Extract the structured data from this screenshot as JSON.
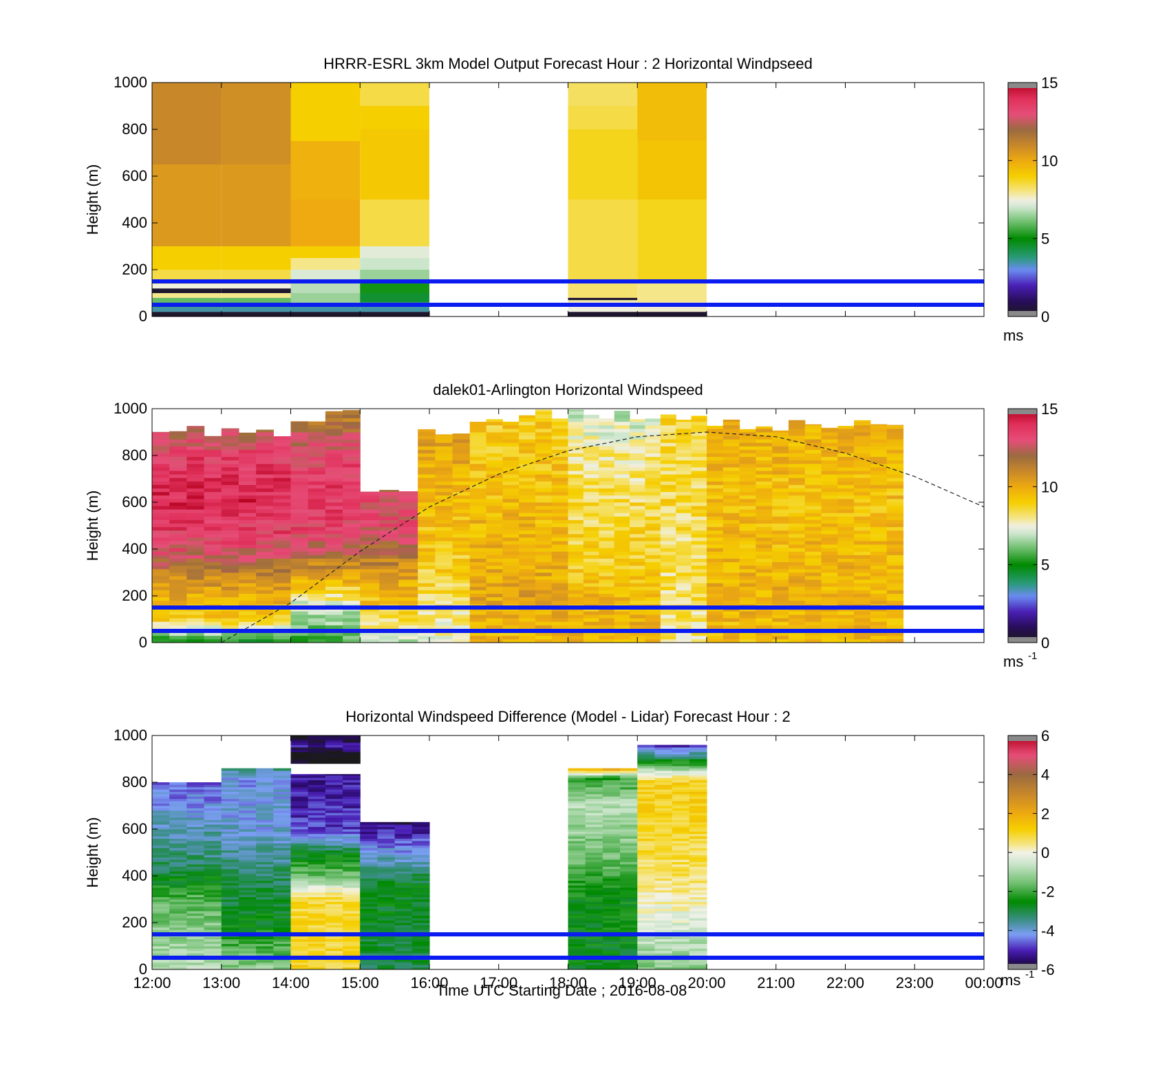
{
  "figure": {
    "x_axis_label": "Time UTC  Starting Date ; 2016-08-08",
    "x_ticks": [
      "12:00",
      "13:00",
      "14:00",
      "15:00",
      "16:00",
      "17:00",
      "18:00",
      "19:00",
      "20:00",
      "21:00",
      "22:00",
      "23:00",
      "00:00"
    ]
  },
  "chart_data": [
    {
      "type": "heatmap",
      "title": "HRRR-ESRL 3km Model Output   Forecast Hour : 2 Horizontal Windpseed",
      "ylabel": "Height (m)",
      "ylim": [
        0,
        1000
      ],
      "y_ticks": [
        "0",
        "200",
        "400",
        "600",
        "800",
        "1000"
      ],
      "colorbar": {
        "ticks": [
          "0",
          "5",
          "10",
          "15"
        ],
        "range": [
          0,
          15
        ],
        "unit": "ms",
        "unit_sup": ""
      },
      "reference_lines_m": [
        50,
        150
      ],
      "columns": [
        {
          "start": "12:00",
          "end": "13:00",
          "top_m": 1000,
          "layers": [
            [
              0,
              0.3
            ],
            [
              20,
              3.5
            ],
            [
              40,
              4.5
            ],
            [
              60,
              6
            ],
            [
              80,
              8
            ],
            [
              100,
              0.3
            ],
            [
              120,
              7.5
            ],
            [
              140,
              8.5
            ],
            [
              200,
              9
            ],
            [
              300,
              10.5
            ],
            [
              1000,
              11
            ]
          ]
        },
        {
          "start": "13:00",
          "end": "14:00",
          "top_m": 1000,
          "layers": [
            [
              0,
              0.3
            ],
            [
              20,
              3.5
            ],
            [
              40,
              4.5
            ],
            [
              60,
              6
            ],
            [
              80,
              8
            ],
            [
              100,
              0.3
            ],
            [
              120,
              7.5
            ],
            [
              140,
              8.5
            ],
            [
              200,
              9
            ],
            [
              300,
              10.5
            ],
            [
              1000,
              10.8
            ]
          ]
        },
        {
          "start": "14:00",
          "end": "15:00",
          "top_m": 1000,
          "layers": [
            [
              0,
              0.3
            ],
            [
              20,
              3.5
            ],
            [
              50,
              6.5
            ],
            [
              100,
              6.8
            ],
            [
              150,
              7.2
            ],
            [
              200,
              8
            ],
            [
              250,
              9
            ],
            [
              300,
              10
            ],
            [
              500,
              9.8
            ],
            [
              1000,
              9
            ]
          ]
        },
        {
          "start": "15:00",
          "end": "16:00",
          "top_m": 1000,
          "layers": [
            [
              0,
              0.3
            ],
            [
              20,
              3.5
            ],
            [
              60,
              4.5
            ],
            [
              100,
              5.2
            ],
            [
              150,
              6.5
            ],
            [
              200,
              7
            ],
            [
              250,
              7.3
            ],
            [
              300,
              8.5
            ],
            [
              500,
              9.2
            ],
            [
              800,
              9
            ],
            [
              1000,
              8.5
            ]
          ]
        },
        {
          "start": "18:00",
          "end": "19:00",
          "top_m": 1000,
          "layers": [
            [
              0,
              0.3
            ],
            [
              20,
              7.5
            ],
            [
              60,
              7.8
            ],
            [
              70,
              0.3
            ],
            [
              80,
              8.2
            ],
            [
              150,
              8.5
            ],
            [
              500,
              8.8
            ],
            [
              800,
              8.5
            ],
            [
              1000,
              8.3
            ]
          ]
        },
        {
          "start": "19:00",
          "end": "20:00",
          "top_m": 1000,
          "layers": [
            [
              0,
              0.3
            ],
            [
              20,
              7.6
            ],
            [
              60,
              8
            ],
            [
              150,
              8.8
            ],
            [
              500,
              9.3
            ],
            [
              1000,
              9.5
            ]
          ]
        }
      ]
    },
    {
      "type": "heatmap",
      "title": "dalek01-Arlington  Horizontal Windspeed",
      "ylabel": "Height (m)",
      "ylim": [
        0,
        1000
      ],
      "y_ticks": [
        "0",
        "200",
        "400",
        "600",
        "800",
        "1000"
      ],
      "colorbar": {
        "ticks": [
          "0",
          "5",
          "10",
          "15"
        ],
        "range": [
          0,
          15
        ],
        "unit": "ms",
        "unit_sup": "-1"
      },
      "reference_lines_m": [
        50,
        150
      ],
      "dashed_curve": {
        "x_hours": [
          13,
          14,
          15,
          16,
          17,
          18,
          19,
          20,
          21,
          22,
          23,
          24
        ],
        "y_m": [
          0,
          170,
          390,
          580,
          720,
          820,
          880,
          900,
          880,
          810,
          710,
          580
        ]
      },
      "columns": [
        {
          "start": "12:00",
          "end": "14:00",
          "top_m": 930,
          "profile": [
            [
              0,
              5
            ],
            [
              100,
              9
            ],
            [
              250,
              10.5
            ],
            [
              400,
              13
            ],
            [
              600,
              14.2
            ],
            [
              800,
              13.5
            ],
            [
              930,
              12
            ]
          ]
        },
        {
          "start": "14:00",
          "end": "15:00",
          "top_m": 1000,
          "profile": [
            [
              0,
              5.5
            ],
            [
              150,
              7
            ],
            [
              300,
              10.5
            ],
            [
              450,
              13.2
            ],
            [
              650,
              13.8
            ],
            [
              800,
              13.2
            ],
            [
              1000,
              11
            ]
          ]
        },
        {
          "start": "15:00",
          "end": "15:50",
          "top_m": 700,
          "profile": [
            [
              0,
              7
            ],
            [
              150,
              9
            ],
            [
              300,
              10.5
            ],
            [
              450,
              12.8
            ],
            [
              600,
              13.2
            ],
            [
              700,
              12
            ]
          ]
        },
        {
          "start": "15:50",
          "end": "16:35",
          "top_m": 940,
          "profile": [
            [
              0,
              7.5
            ],
            [
              200,
              8.5
            ],
            [
              400,
              9.2
            ],
            [
              600,
              9.5
            ],
            [
              800,
              10
            ],
            [
              940,
              10.5
            ]
          ]
        },
        {
          "start": "16:35",
          "end": "18:00",
          "top_m": 1000,
          "profile": [
            [
              0,
              9.5
            ],
            [
              200,
              10.2
            ],
            [
              400,
              9.8
            ],
            [
              600,
              9.5
            ],
            [
              800,
              9.2
            ],
            [
              1000,
              9
            ]
          ]
        },
        {
          "start": "18:00",
          "end": "19:20",
          "top_m": 1000,
          "profile": [
            [
              0,
              9.8
            ],
            [
              200,
              9.5
            ],
            [
              400,
              8.8
            ],
            [
              600,
              8.5
            ],
            [
              800,
              8
            ],
            [
              1000,
              7
            ]
          ]
        },
        {
          "start": "19:20",
          "end": "20:00",
          "top_m": 1000,
          "profile": [
            [
              0,
              8
            ],
            [
              200,
              8.3
            ],
            [
              400,
              8.2
            ],
            [
              600,
              8.6
            ],
            [
              800,
              8.4
            ],
            [
              1000,
              8.8
            ]
          ]
        },
        {
          "start": "20:00",
          "end": "22:50",
          "top_m": 960,
          "profile": [
            [
              0,
              9.5
            ],
            [
              200,
              9.8
            ],
            [
              400,
              9.6
            ],
            [
              600,
              9.4
            ],
            [
              800,
              9.6
            ],
            [
              960,
              10
            ]
          ]
        }
      ]
    },
    {
      "type": "heatmap",
      "title": "Horizontal Windspeed Difference (Model - Lidar) Forecast Hour : 2",
      "ylabel": "Height (m)",
      "ylim": [
        0,
        1000
      ],
      "y_ticks": [
        "0",
        "200",
        "400",
        "600",
        "800",
        "1000"
      ],
      "colorbar": {
        "ticks": [
          "-6",
          "-4",
          "-2",
          "0",
          "2",
          "4",
          "6"
        ],
        "range": [
          -6,
          6
        ],
        "unit": "ms",
        "unit_sup": "-1"
      },
      "reference_lines_m": [
        50,
        150
      ],
      "columns": [
        {
          "start": "12:00",
          "end": "13:00",
          "top_m": 800,
          "profile": [
            [
              0,
              -0.8
            ],
            [
              150,
              -1.2
            ],
            [
              300,
              -1.8
            ],
            [
              450,
              -3.2
            ],
            [
              600,
              -3.8
            ],
            [
              800,
              -4.6
            ]
          ]
        },
        {
          "start": "13:00",
          "end": "14:00",
          "top_m": 860,
          "profile": [
            [
              0,
              -1.2
            ],
            [
              200,
              -2.6
            ],
            [
              400,
              -3.2
            ],
            [
              600,
              -4
            ],
            [
              800,
              -4.2
            ],
            [
              860,
              -3.5
            ]
          ]
        },
        {
          "start": "14:00",
          "end": "15:00",
          "top_m": 835,
          "profile": [
            [
              0,
              1
            ],
            [
              300,
              0.9
            ],
            [
              400,
              -1.5
            ],
            [
              500,
              -2.8
            ],
            [
              600,
              -4.8
            ],
            [
              835,
              -5.2
            ]
          ]
        },
        {
          "start": "14:00",
          "end": "15:00",
          "bottom_m": 880,
          "top_m": 1000,
          "profile": [
            [
              880,
              -6.2
            ],
            [
              920,
              -6.2
            ],
            [
              960,
              -5
            ],
            [
              1000,
              -6.2
            ]
          ]
        },
        {
          "start": "15:00",
          "end": "16:00",
          "top_m": 630,
          "profile": [
            [
              0,
              -3
            ],
            [
              200,
              -2.8
            ],
            [
              350,
              -2.6
            ],
            [
              450,
              -3.6
            ],
            [
              550,
              -4.6
            ],
            [
              630,
              -5.5
            ]
          ]
        },
        {
          "start": "18:00",
          "end": "19:00",
          "top_m": 860,
          "profile": [
            [
              0,
              -2.7
            ],
            [
              300,
              -2.5
            ],
            [
              500,
              -1.5
            ],
            [
              700,
              -0.8
            ],
            [
              820,
              -2.2
            ],
            [
              860,
              2.5
            ]
          ]
        },
        {
          "start": "19:00",
          "end": "20:00",
          "top_m": 960,
          "profile": [
            [
              0,
              -1.4
            ],
            [
              150,
              -0.6
            ],
            [
              250,
              0
            ],
            [
              400,
              0.6
            ],
            [
              600,
              1
            ],
            [
              800,
              1.2
            ],
            [
              960,
              -5.2
            ]
          ]
        }
      ]
    }
  ]
}
